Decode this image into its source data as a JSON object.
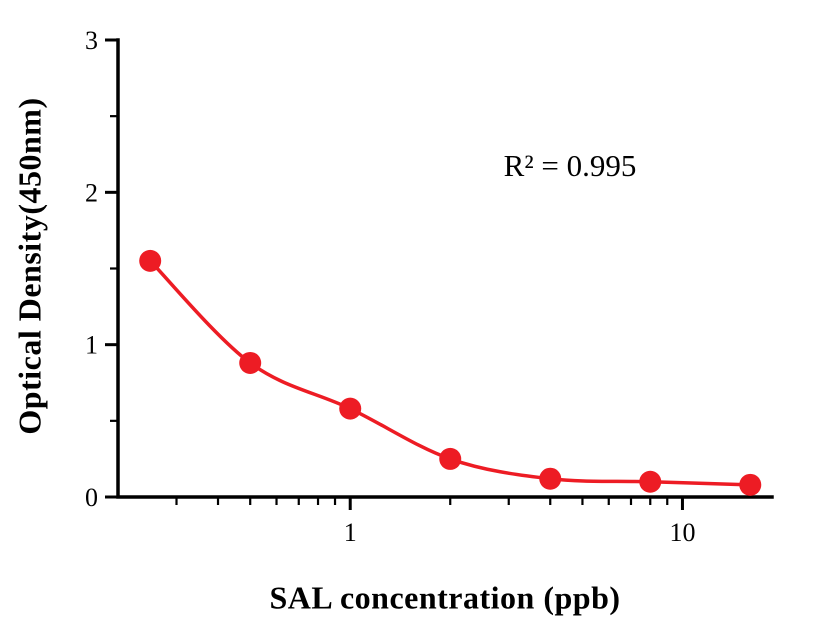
{
  "chart_data": {
    "type": "scatter",
    "title": "",
    "xlabel": "SAL concentration (ppb)",
    "ylabel": "Optical Density(450nm)",
    "annotation": "R² = 0.995",
    "xscale": "log",
    "xlim": [
      0.2,
      18.6
    ],
    "ylim": [
      0,
      3
    ],
    "x": [
      0.25,
      0.5,
      1,
      2,
      4,
      8,
      16
    ],
    "y": [
      1.55,
      0.88,
      0.58,
      0.25,
      0.12,
      0.1,
      0.08
    ],
    "x_major_ticks": [
      1,
      10
    ],
    "x_tick_labels": [
      "1",
      "10"
    ],
    "x_minor_ticks": [
      0.3,
      0.4,
      0.5,
      0.6,
      0.7,
      0.8,
      0.9,
      2,
      3,
      4,
      5,
      6,
      7,
      8,
      9
    ],
    "y_major_ticks": [
      0,
      1,
      2,
      3
    ],
    "y_tick_labels": [
      "0",
      "1",
      "2",
      "3"
    ],
    "y_minor_ticks": [
      0.5,
      1.5,
      2.5
    ],
    "grid": false,
    "legend_position": "none",
    "colors": {
      "points": "#ed1c24",
      "curve": "#ed1c24",
      "axis": "#000000",
      "text": "#000000"
    }
  }
}
